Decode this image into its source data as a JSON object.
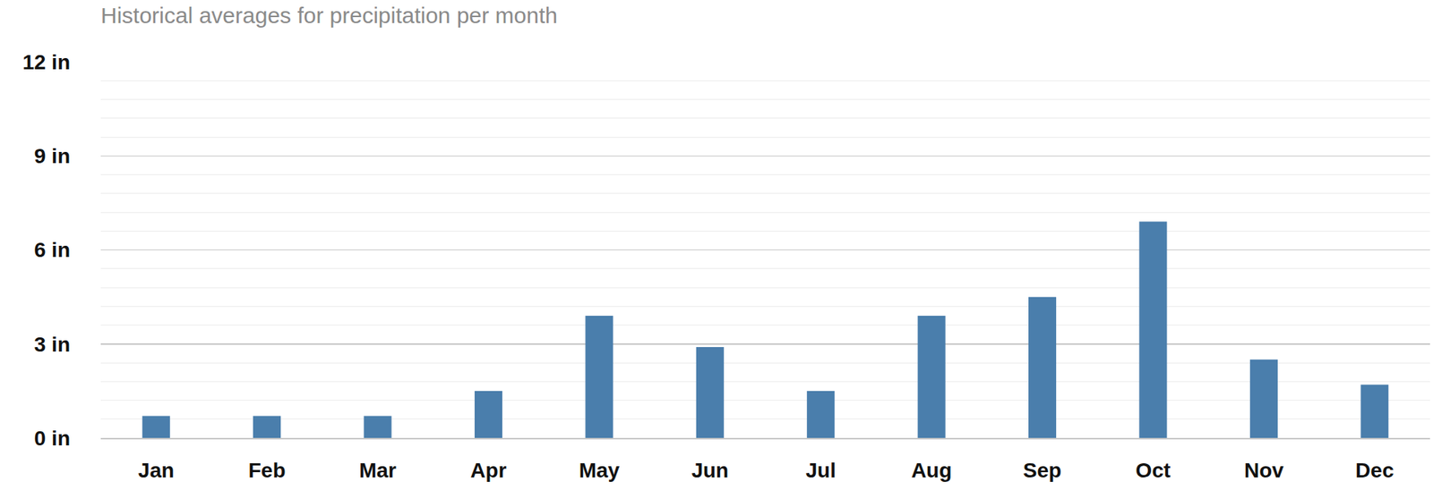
{
  "chart_data": {
    "type": "bar",
    "title": "Historical averages for precipitation per month",
    "categories": [
      "Jan",
      "Feb",
      "Mar",
      "Apr",
      "May",
      "Jun",
      "Jul",
      "Aug",
      "Sep",
      "Oct",
      "Nov",
      "Dec"
    ],
    "values": [
      0.7,
      0.7,
      0.7,
      1.5,
      3.9,
      2.9,
      1.5,
      3.9,
      4.5,
      6.9,
      2.5,
      1.7
    ],
    "color": "#4a7eac",
    "ylim": [
      0,
      12
    ],
    "yticks": [
      {
        "value": 0,
        "label": "0 in"
      },
      {
        "value": 3,
        "label": "3 in"
      },
      {
        "value": 6,
        "label": "6 in"
      },
      {
        "value": 9,
        "label": "9 in"
      },
      {
        "value": 12,
        "label": "12 in"
      }
    ],
    "grid": true
  }
}
